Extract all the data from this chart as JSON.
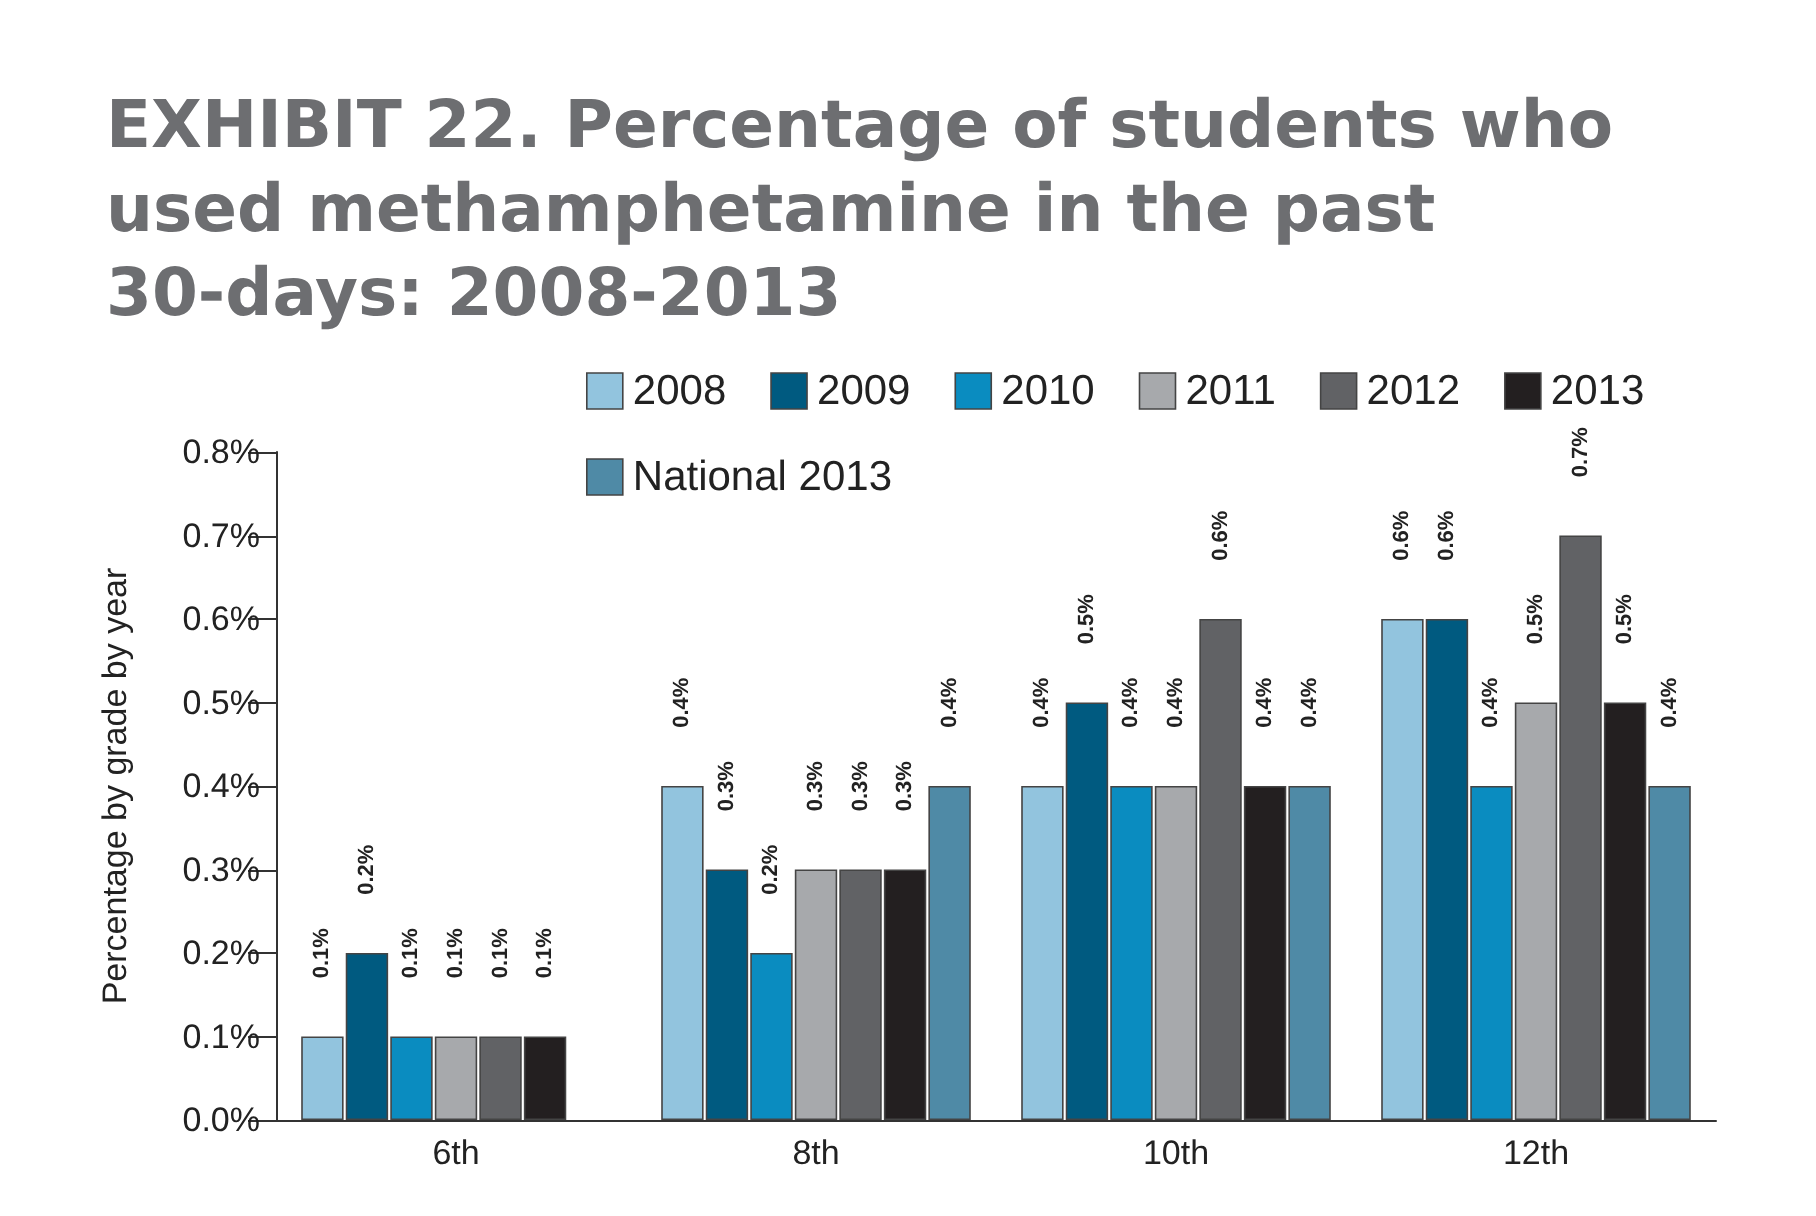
{
  "chart_data": {
    "type": "bar",
    "title": "EXHIBIT 22. Percentage of students who used methamphetamine in the past 30-days: 2008-2013",
    "ylabel": "Percentage by grade by year",
    "categories": [
      "6th",
      "8th",
      "10th",
      "12th"
    ],
    "series": [
      {
        "name": "2008",
        "color": "#92c4de",
        "values": [
          0.1,
          0.4,
          0.4,
          0.6
        ],
        "value_labels": [
          "0.1%",
          "0.4%",
          "0.4%",
          "0.6%"
        ]
      },
      {
        "name": "2009",
        "color": "#005a80",
        "values": [
          0.2,
          0.3,
          0.5,
          0.6
        ],
        "value_labels": [
          "0.2%",
          "0.3%",
          "0.5%",
          "0.6%"
        ]
      },
      {
        "name": "2010",
        "color": "#0a8cc0",
        "values": [
          0.1,
          0.2,
          0.4,
          0.4
        ],
        "value_labels": [
          "0.1%",
          "0.2%",
          "0.4%",
          "0.4%"
        ]
      },
      {
        "name": "2011",
        "color": "#a7a9ac",
        "values": [
          0.1,
          0.3,
          0.4,
          0.5
        ],
        "value_labels": [
          "0.1%",
          "0.3%",
          "0.4%",
          "0.5%"
        ]
      },
      {
        "name": "2012",
        "color": "#616265",
        "values": [
          0.1,
          0.3,
          0.6,
          0.7
        ],
        "value_labels": [
          "0.1%",
          "0.3%",
          "0.6%",
          "0.7%"
        ]
      },
      {
        "name": "2013",
        "color": "#231f20",
        "values": [
          0.1,
          0.3,
          0.4,
          0.5
        ],
        "value_labels": [
          "0.1%",
          "0.3%",
          "0.4%",
          "0.5%"
        ]
      },
      {
        "name": "National 2013",
        "color": "#4f8aa6",
        "values": [
          null,
          0.4,
          0.4,
          0.4
        ],
        "value_labels": [
          null,
          "0.4%",
          "0.4%",
          "0.4%"
        ]
      }
    ],
    "ylim": [
      0,
      0.8
    ],
    "yticks": [
      {
        "value": 0,
        "label": "0.0%"
      },
      {
        "value": 0.1,
        "label": "0.1%"
      },
      {
        "value": 0.2,
        "label": "0.2%"
      },
      {
        "value": 0.3,
        "label": "0.3%"
      },
      {
        "value": 0.4,
        "label": "0.4%"
      },
      {
        "value": 0.5,
        "label": "0.5%"
      },
      {
        "value": 0.6,
        "label": "0.6%"
      },
      {
        "value": 0.7,
        "label": "0.7%"
      },
      {
        "value": 0.8,
        "label": "0.8%"
      }
    ],
    "grid": false,
    "legend": "top right"
  }
}
